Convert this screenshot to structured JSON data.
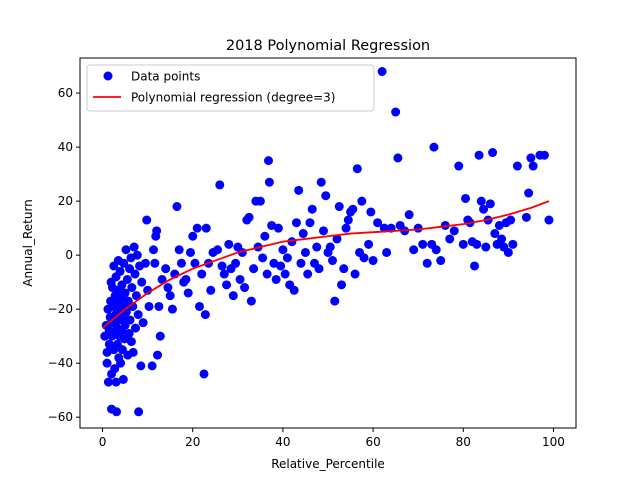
{
  "chart_data": {
    "type": "scatter",
    "title": "2018 Polynomial Regression",
    "xlabel": "Relative_Percentile",
    "ylabel": "Annual_Return",
    "xlim": [
      -5,
      105
    ],
    "ylim": [
      -64,
      73
    ],
    "x_ticks": [
      0,
      20,
      40,
      60,
      80,
      100
    ],
    "y_ticks": [
      -60,
      -40,
      -20,
      0,
      20,
      40,
      60
    ],
    "grid": false,
    "legend_position": "top-left",
    "series": [
      {
        "name": "Data points",
        "kind": "scatter",
        "color": "#0000ff",
        "points": [
          [
            0.5,
            -30
          ],
          [
            0.8,
            -26
          ],
          [
            1,
            -36
          ],
          [
            1,
            -40
          ],
          [
            1.2,
            -20
          ],
          [
            1.3,
            -47
          ],
          [
            1.5,
            -28
          ],
          [
            1.5,
            -33
          ],
          [
            1.7,
            -23
          ],
          [
            1.8,
            -17
          ],
          [
            1.9,
            -10
          ],
          [
            2,
            -44
          ],
          [
            2,
            -57
          ],
          [
            2.1,
            -30
          ],
          [
            2.2,
            -12
          ],
          [
            2.3,
            -25
          ],
          [
            2.4,
            -19
          ],
          [
            2.5,
            -4
          ],
          [
            2.5,
            -35
          ],
          [
            2.6,
            -29
          ],
          [
            2.7,
            -42
          ],
          [
            2.8,
            -15
          ],
          [
            2.9,
            -22
          ],
          [
            3,
            -8
          ],
          [
            3,
            -47
          ],
          [
            3.1,
            -58
          ],
          [
            3.2,
            -27
          ],
          [
            3.3,
            -33
          ],
          [
            3.4,
            -18
          ],
          [
            3.5,
            -2
          ],
          [
            3.5,
            -13
          ],
          [
            3.6,
            -38
          ],
          [
            3.7,
            -24
          ],
          [
            3.8,
            -30
          ],
          [
            3.9,
            -6
          ],
          [
            4,
            -20
          ],
          [
            4,
            -40
          ],
          [
            4.1,
            -16
          ],
          [
            4.2,
            -28
          ],
          [
            4.3,
            -11
          ],
          [
            4.4,
            -35
          ],
          [
            4.5,
            -23
          ],
          [
            4.6,
            -46
          ],
          [
            4.7,
            -3
          ],
          [
            4.8,
            -19
          ],
          [
            4.9,
            -31
          ],
          [
            5,
            -14
          ],
          [
            5,
            -26
          ],
          [
            5.2,
            2
          ],
          [
            5.3,
            -21
          ],
          [
            5.5,
            -9
          ],
          [
            5.6,
            -37
          ],
          [
            5.7,
            -17
          ],
          [
            5.9,
            -29
          ],
          [
            6,
            -5
          ],
          [
            6.1,
            -24
          ],
          [
            6.3,
            -1
          ],
          [
            6.4,
            -32
          ],
          [
            6.5,
            -12
          ],
          [
            6.7,
            -19
          ],
          [
            6.8,
            -36
          ],
          [
            7,
            3
          ],
          [
            7.2,
            -7
          ],
          [
            7.3,
            -27
          ],
          [
            7.5,
            -15
          ],
          [
            7.7,
            0
          ],
          [
            7.9,
            -22
          ],
          [
            8,
            -58
          ],
          [
            8.2,
            -4
          ],
          [
            8.5,
            -41
          ],
          [
            8.7,
            -10
          ],
          [
            9,
            -25
          ],
          [
            9.5,
            -3
          ],
          [
            9.8,
            13
          ],
          [
            10,
            -13
          ],
          [
            10.3,
            -19
          ],
          [
            11,
            -41
          ],
          [
            11.3,
            2
          ],
          [
            11.6,
            -3
          ],
          [
            11.8,
            7
          ],
          [
            12,
            9
          ],
          [
            12.2,
            -37
          ],
          [
            12.5,
            -19
          ],
          [
            12.8,
            -30
          ],
          [
            13.2,
            -9
          ],
          [
            14,
            -5
          ],
          [
            14.5,
            -12
          ],
          [
            15,
            -15
          ],
          [
            15.5,
            -20
          ],
          [
            16,
            -7
          ],
          [
            16.5,
            18
          ],
          [
            17,
            2
          ],
          [
            17.5,
            -3
          ],
          [
            18,
            -10
          ],
          [
            18.5,
            -9
          ],
          [
            19,
            -14
          ],
          [
            19.5,
            1
          ],
          [
            20,
            7
          ],
          [
            20.5,
            -3
          ],
          [
            21,
            10
          ],
          [
            21.5,
            -19
          ],
          [
            22,
            -7
          ],
          [
            22.5,
            -44
          ],
          [
            22.8,
            -22
          ],
          [
            23,
            10
          ],
          [
            23.5,
            -3
          ],
          [
            24,
            -13
          ],
          [
            24.5,
            1
          ],
          [
            25.5,
            2
          ],
          [
            26,
            26
          ],
          [
            26.5,
            -4
          ],
          [
            27,
            -7
          ],
          [
            27.5,
            -11
          ],
          [
            28,
            4
          ],
          [
            28.5,
            -5
          ],
          [
            29,
            -15
          ],
          [
            29.5,
            -3
          ],
          [
            30,
            3
          ],
          [
            30.5,
            -9
          ],
          [
            31,
            1
          ],
          [
            31.5,
            -12
          ],
          [
            32,
            13
          ],
          [
            32.5,
            14
          ],
          [
            33,
            -17
          ],
          [
            33.5,
            -5
          ],
          [
            34,
            20
          ],
          [
            34.5,
            3
          ],
          [
            35,
            20
          ],
          [
            35.5,
            -1
          ],
          [
            36,
            7
          ],
          [
            36.5,
            -7
          ],
          [
            36.8,
            35
          ],
          [
            37,
            27
          ],
          [
            37.5,
            11
          ],
          [
            38,
            -3
          ],
          [
            38.5,
            -9
          ],
          [
            39,
            10
          ],
          [
            39.5,
            -4
          ],
          [
            40,
            2
          ],
          [
            40.5,
            -7
          ],
          [
            41,
            -1
          ],
          [
            41.5,
            -11
          ],
          [
            42,
            5
          ],
          [
            42.5,
            -13
          ],
          [
            43,
            12
          ],
          [
            43.5,
            24
          ],
          [
            44,
            -3
          ],
          [
            44.5,
            8
          ],
          [
            45,
            1
          ],
          [
            45.5,
            -7
          ],
          [
            46,
            12
          ],
          [
            46.5,
            17
          ],
          [
            47,
            -3
          ],
          [
            47.5,
            3
          ],
          [
            48,
            -5
          ],
          [
            48.5,
            27
          ],
          [
            49,
            9
          ],
          [
            49.5,
            22
          ],
          [
            50,
            1
          ],
          [
            50.5,
            3
          ],
          [
            51,
            -2
          ],
          [
            51.5,
            -17
          ],
          [
            52,
            6
          ],
          [
            52.5,
            18
          ],
          [
            53,
            -11
          ],
          [
            53.5,
            -5
          ],
          [
            54,
            10
          ],
          [
            54.5,
            13
          ],
          [
            55,
            16
          ],
          [
            55.5,
            17
          ],
          [
            56,
            -7
          ],
          [
            56.5,
            32
          ],
          [
            57,
            1
          ],
          [
            57.5,
            20
          ],
          [
            58,
            -1
          ],
          [
            59,
            4
          ],
          [
            59.5,
            16
          ],
          [
            60,
            -2
          ],
          [
            61,
            12
          ],
          [
            62,
            68
          ],
          [
            62.5,
            10
          ],
          [
            63,
            1
          ],
          [
            64,
            10
          ],
          [
            65,
            53
          ],
          [
            65.5,
            36
          ],
          [
            66,
            11
          ],
          [
            67,
            9
          ],
          [
            68,
            15
          ],
          [
            69,
            2
          ],
          [
            70,
            10
          ],
          [
            71,
            4
          ],
          [
            72,
            -3
          ],
          [
            73,
            4
          ],
          [
            73.5,
            40
          ],
          [
            74,
            2
          ],
          [
            75,
            -2
          ],
          [
            76,
            11
          ],
          [
            77,
            6
          ],
          [
            78,
            9
          ],
          [
            79,
            33
          ],
          [
            80,
            4
          ],
          [
            80.5,
            21
          ],
          [
            81,
            13
          ],
          [
            81.5,
            12
          ],
          [
            82,
            5
          ],
          [
            82.5,
            -4
          ],
          [
            83,
            4
          ],
          [
            83.5,
            37
          ],
          [
            84,
            20
          ],
          [
            84.5,
            17
          ],
          [
            85,
            3
          ],
          [
            85.5,
            13
          ],
          [
            86,
            19
          ],
          [
            86.5,
            38
          ],
          [
            87,
            8
          ],
          [
            87.5,
            4
          ],
          [
            88,
            11
          ],
          [
            88.5,
            6
          ],
          [
            89,
            3
          ],
          [
            89.5,
            12
          ],
          [
            90,
            1
          ],
          [
            90.5,
            13
          ],
          [
            91,
            4
          ],
          [
            92,
            33
          ],
          [
            94,
            14
          ],
          [
            94.5,
            23
          ],
          [
            95,
            36
          ],
          [
            95.5,
            33
          ],
          [
            97,
            37
          ],
          [
            98,
            37
          ],
          [
            99,
            13
          ]
        ]
      },
      {
        "name": "Polynomial regression (degree=3)",
        "kind": "line",
        "color": "#ff0000",
        "x": [
          0,
          5,
          10,
          15,
          20,
          25,
          30,
          35,
          40,
          45,
          50,
          55,
          60,
          65,
          70,
          75,
          80,
          85,
          90,
          95,
          99
        ],
        "y": [
          -27,
          -20,
          -14,
          -9,
          -5,
          -2,
          1,
          3,
          5,
          6,
          7,
          8,
          8.5,
          9,
          9.5,
          10.5,
          11.5,
          13,
          15,
          17.5,
          20
        ]
      }
    ]
  }
}
